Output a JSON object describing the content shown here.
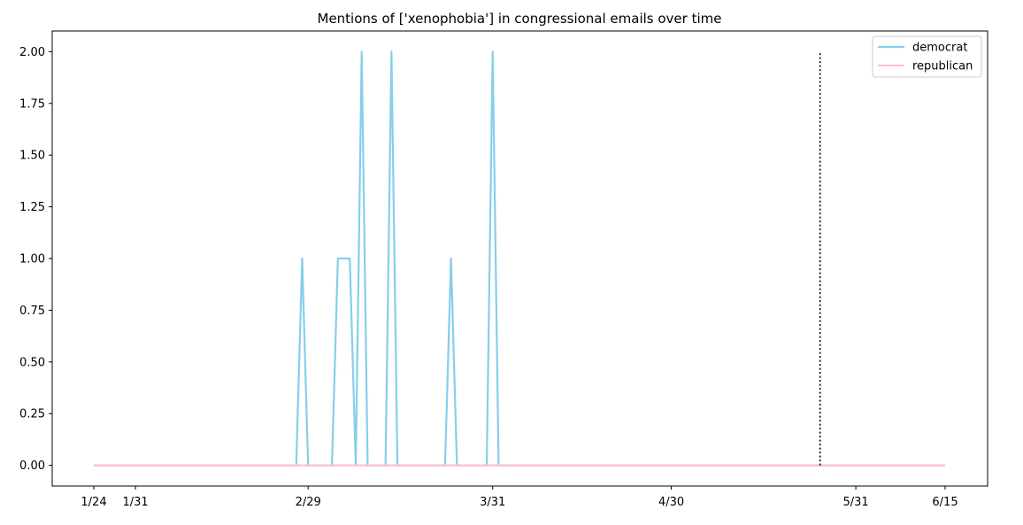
{
  "chart_data": {
    "type": "line",
    "title": "Mentions of ['xenophobia'] in congressional emails over time",
    "xlabel": "",
    "ylabel": "",
    "x": [
      "1/24",
      "1/25",
      "1/26",
      "1/27",
      "1/28",
      "1/29",
      "1/30",
      "1/31",
      "2/1",
      "2/2",
      "2/3",
      "2/4",
      "2/5",
      "2/6",
      "2/7",
      "2/8",
      "2/9",
      "2/10",
      "2/11",
      "2/12",
      "2/13",
      "2/14",
      "2/15",
      "2/16",
      "2/17",
      "2/18",
      "2/19",
      "2/20",
      "2/21",
      "2/22",
      "2/23",
      "2/24",
      "2/25",
      "2/26",
      "2/27",
      "2/28",
      "2/29",
      "3/1",
      "3/2",
      "3/3",
      "3/4",
      "3/5",
      "3/6",
      "3/7",
      "3/8",
      "3/9",
      "3/10",
      "3/11",
      "3/12",
      "3/13",
      "3/14",
      "3/15",
      "3/16",
      "3/17",
      "3/18",
      "3/19",
      "3/20",
      "3/21",
      "3/22",
      "3/23",
      "3/24",
      "3/25",
      "3/26",
      "3/27",
      "3/28",
      "3/29",
      "3/30",
      "3/31",
      "4/1",
      "4/2",
      "4/3",
      "4/4",
      "4/5",
      "4/6",
      "4/7",
      "4/8",
      "4/9",
      "4/10",
      "4/11",
      "4/12",
      "4/13",
      "4/14",
      "4/15",
      "4/16",
      "4/17",
      "4/18",
      "4/19",
      "4/20",
      "4/21",
      "4/22",
      "4/23",
      "4/24",
      "4/25",
      "4/26",
      "4/27",
      "4/28",
      "4/29",
      "4/30",
      "5/1",
      "5/2",
      "5/3",
      "5/4",
      "5/5",
      "5/6",
      "5/7",
      "5/8",
      "5/9",
      "5/10",
      "5/11",
      "5/12",
      "5/13",
      "5/14",
      "5/15",
      "5/16",
      "5/17",
      "5/18",
      "5/19",
      "5/20",
      "5/21",
      "5/22",
      "5/23",
      "5/24",
      "5/25",
      "5/26",
      "5/27",
      "5/28",
      "5/29",
      "5/30",
      "5/31",
      "6/1",
      "6/2",
      "6/3",
      "6/4",
      "6/5",
      "6/6",
      "6/7",
      "6/8",
      "6/9",
      "6/10",
      "6/11",
      "6/12",
      "6/13",
      "6/14",
      "6/15"
    ],
    "x_ticks": [
      "1/24",
      "1/31",
      "2/29",
      "3/31",
      "4/30",
      "5/31",
      "6/15"
    ],
    "y_ticks": [
      "0.00",
      "0.25",
      "0.50",
      "0.75",
      "1.00",
      "1.25",
      "1.50",
      "1.75",
      "2.00"
    ],
    "ylim": [
      -0.1,
      2.1
    ],
    "vline": {
      "x": "5/25",
      "y": [
        0,
        2
      ],
      "style": "dotted"
    },
    "legend_position": "top-right",
    "series": [
      {
        "name": "democrat",
        "color": "#87ceeb",
        "points": [
          [
            "1/24",
            0
          ],
          [
            "2/27",
            0
          ],
          [
            "2/28",
            1
          ],
          [
            "2/29",
            0
          ],
          [
            "3/4",
            0
          ],
          [
            "3/5",
            1
          ],
          [
            "3/6",
            1
          ],
          [
            "3/7",
            1
          ],
          [
            "3/8",
            0
          ],
          [
            "3/9",
            2
          ],
          [
            "3/10",
            0
          ],
          [
            "3/13",
            0
          ],
          [
            "3/14",
            2
          ],
          [
            "3/15",
            0
          ],
          [
            "3/23",
            0
          ],
          [
            "3/24",
            1
          ],
          [
            "3/25",
            0
          ],
          [
            "3/30",
            0
          ],
          [
            "3/31",
            2
          ],
          [
            "4/1",
            0
          ],
          [
            "6/15",
            0
          ]
        ]
      },
      {
        "name": "republican",
        "color": "#ffc0cb",
        "points": [
          [
            "1/24",
            0
          ],
          [
            "6/15",
            0
          ]
        ]
      }
    ]
  }
}
